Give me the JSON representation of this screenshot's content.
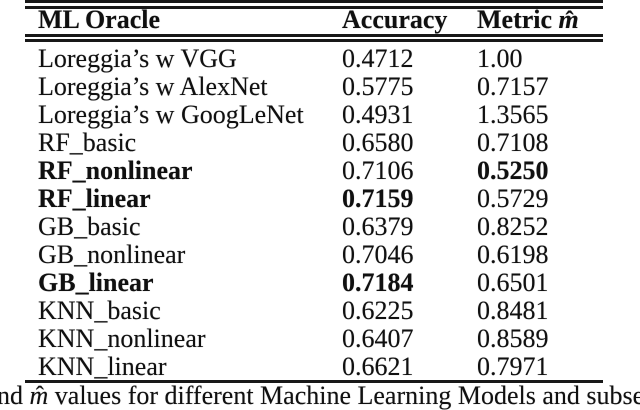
{
  "colors": {
    "text": "#101010",
    "background": "#ffffff",
    "rule": "#181818"
  },
  "table": {
    "headers": {
      "model": "ML Oracle",
      "accuracy": "Accuracy",
      "metric_prefix": "Metric ",
      "metric_math_base": "m",
      "metric_math_hat": "ˆ"
    },
    "rows": [
      {
        "model": "Loreggia’s w VGG",
        "accuracy": "0.4712",
        "metric": "1.00",
        "bold_model": false,
        "bold_accuracy": false,
        "bold_metric": false
      },
      {
        "model": "Loreggia’s w AlexNet",
        "accuracy": "0.5775",
        "metric": "0.7157",
        "bold_model": false,
        "bold_accuracy": false,
        "bold_metric": false
      },
      {
        "model": "Loreggia’s w GoogLeNet",
        "accuracy": "0.4931",
        "metric": "1.3565",
        "bold_model": false,
        "bold_accuracy": false,
        "bold_metric": false
      },
      {
        "model": "RF_basic",
        "accuracy": "0.6580",
        "metric": "0.7108",
        "bold_model": false,
        "bold_accuracy": false,
        "bold_metric": false
      },
      {
        "model": "RF_nonlinear",
        "accuracy": "0.7106",
        "metric": "0.5250",
        "bold_model": true,
        "bold_accuracy": false,
        "bold_metric": true
      },
      {
        "model": "RF_linear",
        "accuracy": "0.7159",
        "metric": "0.5729",
        "bold_model": true,
        "bold_accuracy": true,
        "bold_metric": false
      },
      {
        "model": "GB_basic",
        "accuracy": "0.6379",
        "metric": "0.8252",
        "bold_model": false,
        "bold_accuracy": false,
        "bold_metric": false
      },
      {
        "model": "GB_nonlinear",
        "accuracy": "0.7046",
        "metric": "0.6198",
        "bold_model": false,
        "bold_accuracy": false,
        "bold_metric": false
      },
      {
        "model": "GB_linear",
        "accuracy": "0.7184",
        "metric": "0.6501",
        "bold_model": true,
        "bold_accuracy": true,
        "bold_metric": false
      },
      {
        "model": "KNN_basic",
        "accuracy": "0.6225",
        "metric": "0.8481",
        "bold_model": false,
        "bold_accuracy": false,
        "bold_metric": false
      },
      {
        "model": "KNN_nonlinear",
        "accuracy": "0.6407",
        "metric": "0.8589",
        "bold_model": false,
        "bold_accuracy": false,
        "bold_metric": false
      },
      {
        "model": "KNN_linear",
        "accuracy": "0.6621",
        "metric": "0.7971",
        "bold_model": false,
        "bold_accuracy": false,
        "bold_metric": false
      }
    ]
  },
  "caption": {
    "before": "nd ",
    "math_base": "m",
    "math_hat": "ˆ",
    "after": " values for different Machine Learning Models and subse"
  }
}
